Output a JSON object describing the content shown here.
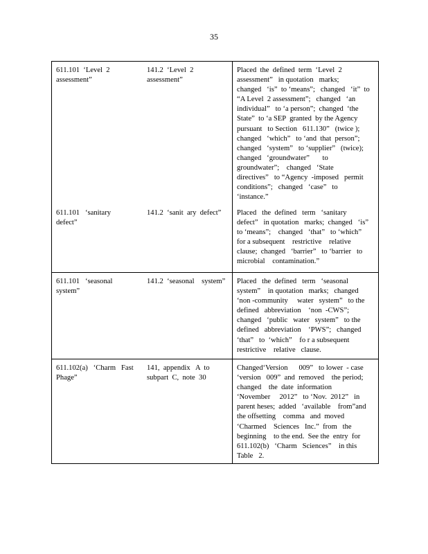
{
  "page_number": "35",
  "rows": [
    {
      "section": [
        "611.101  ‘Level  2",
        "assessment”"
      ],
      "source": [
        "141.2  ‘Level  2",
        "assessment”"
      ],
      "changes": [
        "Placed  the  defined  term  ‘Level  2",
        "assessment”   in quotation   marks;",
        "changed   ‘is”  to ‘means”;   changed   ‘it”  to",
        "“A Level  2 assessment”;   changed   ‘an",
        "individual”   to ‘a person”;  changed  ‘the",
        "State”  to ‘a SEP  granted  by the Agency",
        "pursuant   to Section   611.130”   (twice );",
        "changed   ‘which”   to ‘and  that  person”;",
        "changed   ‘system”   to ‘supplier”   (twice);",
        "changed   ‘groundwater”       to",
        "groundwater”;    changed   ‘State",
        "directives”   to “Agency  -imposed   permit",
        "conditions”;   changed   ‘case”   to",
        "‘instance.”"
      ]
    },
    {
      "section": [
        "611.101   ‘sanitary",
        "defect”"
      ],
      "source": [
        "141.2  ‘sanit  ary  defect”"
      ],
      "changes": [
        "Placed   the  defined   term   ‘sanitary",
        "defect”   in quotation   marks;  changed   ‘is”",
        "to ‘means”;    changed   ‘that”   to ‘which”",
        "for a subsequent    restrictive    relative",
        "clause;  changed   ‘barrier”   to ‘barrier   to",
        "microbial    contamination.”"
      ]
    },
    {
      "section": [
        "611.101   ‘seasonal",
        "system”"
      ],
      "source": [
        "141.2  ‘seasonal    system”"
      ],
      "changes": [
        "Placed   the  defined   term   ‘seasonal",
        "system”    in quotation   marks;   changed",
        "‘non -community     water   system”   to the",
        "defined   abbreviation    ‘non  -CWS”;",
        "changed   ‘public   water   system”   to the",
        "defined   abbreviation    ‘PWS”;   changed",
        "‘that”   to  ‘which”    fo r a subsequent",
        "restrictive    relative   clause."
      ]
    },
    {
      "section": [
        "611.102(a)   ‘Charm   Fast",
        "Phage”"
      ],
      "source": [
        "141,  appendix   A  to",
        "subpart  C,  note  30"
      ],
      "changes": [
        "Changed‘Version      009”   to lower  - case",
        "‘version   009”  and  removed    the period;",
        "changed    the  date  information",
        "‘November     2012”   to ‘Nov.  2012”   in",
        "parent heses;  added   ‘available    from”and",
        "the offsetting    comma   and  moved",
        "‘Charmed    Sciences   Inc.”  from   the",
        "beginning    to the end.  See the  entry  for",
        "611.102(b)   ‘Charm   Sciences”    in this",
        "Table   2."
      ]
    }
  ]
}
